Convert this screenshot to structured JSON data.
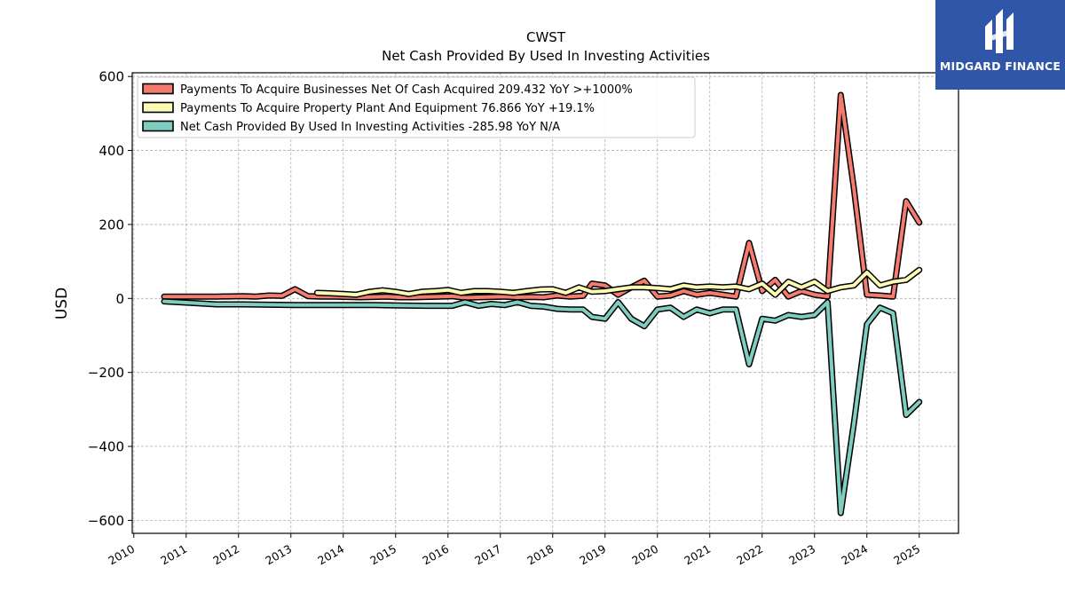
{
  "brand": {
    "name": "MIDGARD FINANCE",
    "bg_color": "#2f56a8"
  },
  "chart_data": {
    "type": "line",
    "title": "CWST",
    "subtitle": "Net Cash Provided By Used In Investing Activities",
    "ylabel": "USD",
    "xlabel": "",
    "xlim": [
      2009.97,
      2025.75
    ],
    "ylim": [
      -635,
      610
    ],
    "yticks": [
      -600,
      -400,
      -200,
      0,
      200,
      400,
      600
    ],
    "ytick_labels": [
      "−600",
      "−400",
      "−200",
      "0",
      "200",
      "400",
      "600"
    ],
    "xticks": [
      2010,
      2011,
      2012,
      2013,
      2014,
      2015,
      2016,
      2017,
      2018,
      2019,
      2020,
      2021,
      2022,
      2023,
      2024,
      2025
    ],
    "xtick_labels": [
      "2010",
      "2011",
      "2012",
      "2013",
      "2014",
      "2015",
      "2016",
      "2017",
      "2018",
      "2019",
      "2020",
      "2021",
      "2022",
      "2023",
      "2024",
      "2025"
    ],
    "grid": true,
    "legend_position": "top-left",
    "series": [
      {
        "name": "Payments To Acquire Businesses Net Of Cash Acquired  209.432 YoY >+1000%",
        "color": "#f47c6e",
        "x": [
          2010.58,
          2011.08,
          2011.58,
          2012.08,
          2012.33,
          2012.58,
          2012.83,
          2013.08,
          2013.33,
          2013.58,
          2013.83,
          2014.08,
          2014.33,
          2014.58,
          2014.83,
          2015.08,
          2015.33,
          2015.58,
          2015.83,
          2016.08,
          2016.33,
          2016.58,
          2016.83,
          2017.08,
          2017.33,
          2017.58,
          2017.83,
          2018.08,
          2018.33,
          2018.58,
          2018.75,
          2019.0,
          2019.25,
          2019.5,
          2019.75,
          2020.0,
          2020.25,
          2020.5,
          2020.75,
          2021.0,
          2021.25,
          2021.5,
          2021.75,
          2022.0,
          2022.25,
          2022.5,
          2022.75,
          2023.0,
          2023.25,
          2023.5,
          2023.75,
          2024.0,
          2024.25,
          2024.5,
          2024.75,
          2025.0
        ],
        "y": [
          5,
          5,
          5,
          6,
          5,
          8,
          7,
          25,
          6,
          5,
          5,
          4,
          3,
          4,
          5,
          3,
          3,
          4,
          5,
          6,
          2,
          3,
          4,
          5,
          3,
          4,
          3,
          8,
          5,
          7,
          40,
          35,
          10,
          30,
          48,
          5,
          8,
          20,
          10,
          15,
          10,
          5,
          150,
          20,
          50,
          5,
          20,
          10,
          5,
          550,
          300,
          10,
          8,
          5,
          263,
          205
        ]
      },
      {
        "name": "Payments To Acquire Property Plant And Equipment  76.866 YoY +19.1%",
        "color": "#fbfbb5",
        "x": [
          2013.5,
          2013.75,
          2014.0,
          2014.25,
          2014.5,
          2014.75,
          2015.0,
          2015.25,
          2015.5,
          2015.75,
          2016.0,
          2016.25,
          2016.5,
          2016.75,
          2017.0,
          2017.25,
          2017.5,
          2017.75,
          2018.0,
          2018.25,
          2018.5,
          2018.75,
          2019.0,
          2019.25,
          2019.5,
          2019.75,
          2020.0,
          2020.25,
          2020.5,
          2020.75,
          2021.0,
          2021.25,
          2021.5,
          2021.75,
          2022.0,
          2022.25,
          2022.5,
          2022.75,
          2023.0,
          2023.25,
          2023.5,
          2023.75,
          2024.0,
          2024.25,
          2024.5,
          2024.75,
          2025.0
        ],
        "y": [
          15,
          14,
          12,
          10,
          18,
          22,
          18,
          12,
          18,
          20,
          23,
          15,
          20,
          20,
          18,
          15,
          20,
          24,
          25,
          15,
          30,
          18,
          20,
          25,
          30,
          30,
          28,
          25,
          35,
          30,
          32,
          30,
          32,
          25,
          40,
          10,
          45,
          30,
          45,
          20,
          30,
          35,
          70,
          35,
          45,
          50,
          77
        ]
      },
      {
        "name": "Net Cash Provided By Used In Investing Activities  -285.98 YoY N/A",
        "color": "#7ecdc0",
        "x": [
          2010.58,
          2011.08,
          2011.58,
          2012.08,
          2012.58,
          2013.08,
          2013.58,
          2014.08,
          2014.58,
          2015.08,
          2015.58,
          2016.08,
          2016.33,
          2016.58,
          2016.83,
          2017.08,
          2017.33,
          2017.58,
          2017.83,
          2018.08,
          2018.33,
          2018.58,
          2018.75,
          2019.0,
          2019.25,
          2019.5,
          2019.75,
          2020.0,
          2020.25,
          2020.5,
          2020.75,
          2021.0,
          2021.25,
          2021.5,
          2021.75,
          2022.0,
          2022.25,
          2022.5,
          2022.75,
          2023.0,
          2023.25,
          2023.5,
          2023.75,
          2024.0,
          2024.25,
          2024.5,
          2024.75,
          2025.0
        ],
        "y": [
          -8,
          -12,
          -16,
          -16,
          -17,
          -18,
          -18,
          -18,
          -18,
          -19,
          -20,
          -20,
          -10,
          -20,
          -15,
          -18,
          -10,
          -20,
          -22,
          -28,
          -30,
          -30,
          -50,
          -55,
          -10,
          -55,
          -75,
          -30,
          -25,
          -50,
          -30,
          -40,
          -30,
          -30,
          -178,
          -55,
          -60,
          -45,
          -50,
          -45,
          -10,
          -580,
          -340,
          -70,
          -25,
          -40,
          -315,
          -280
        ]
      }
    ]
  }
}
